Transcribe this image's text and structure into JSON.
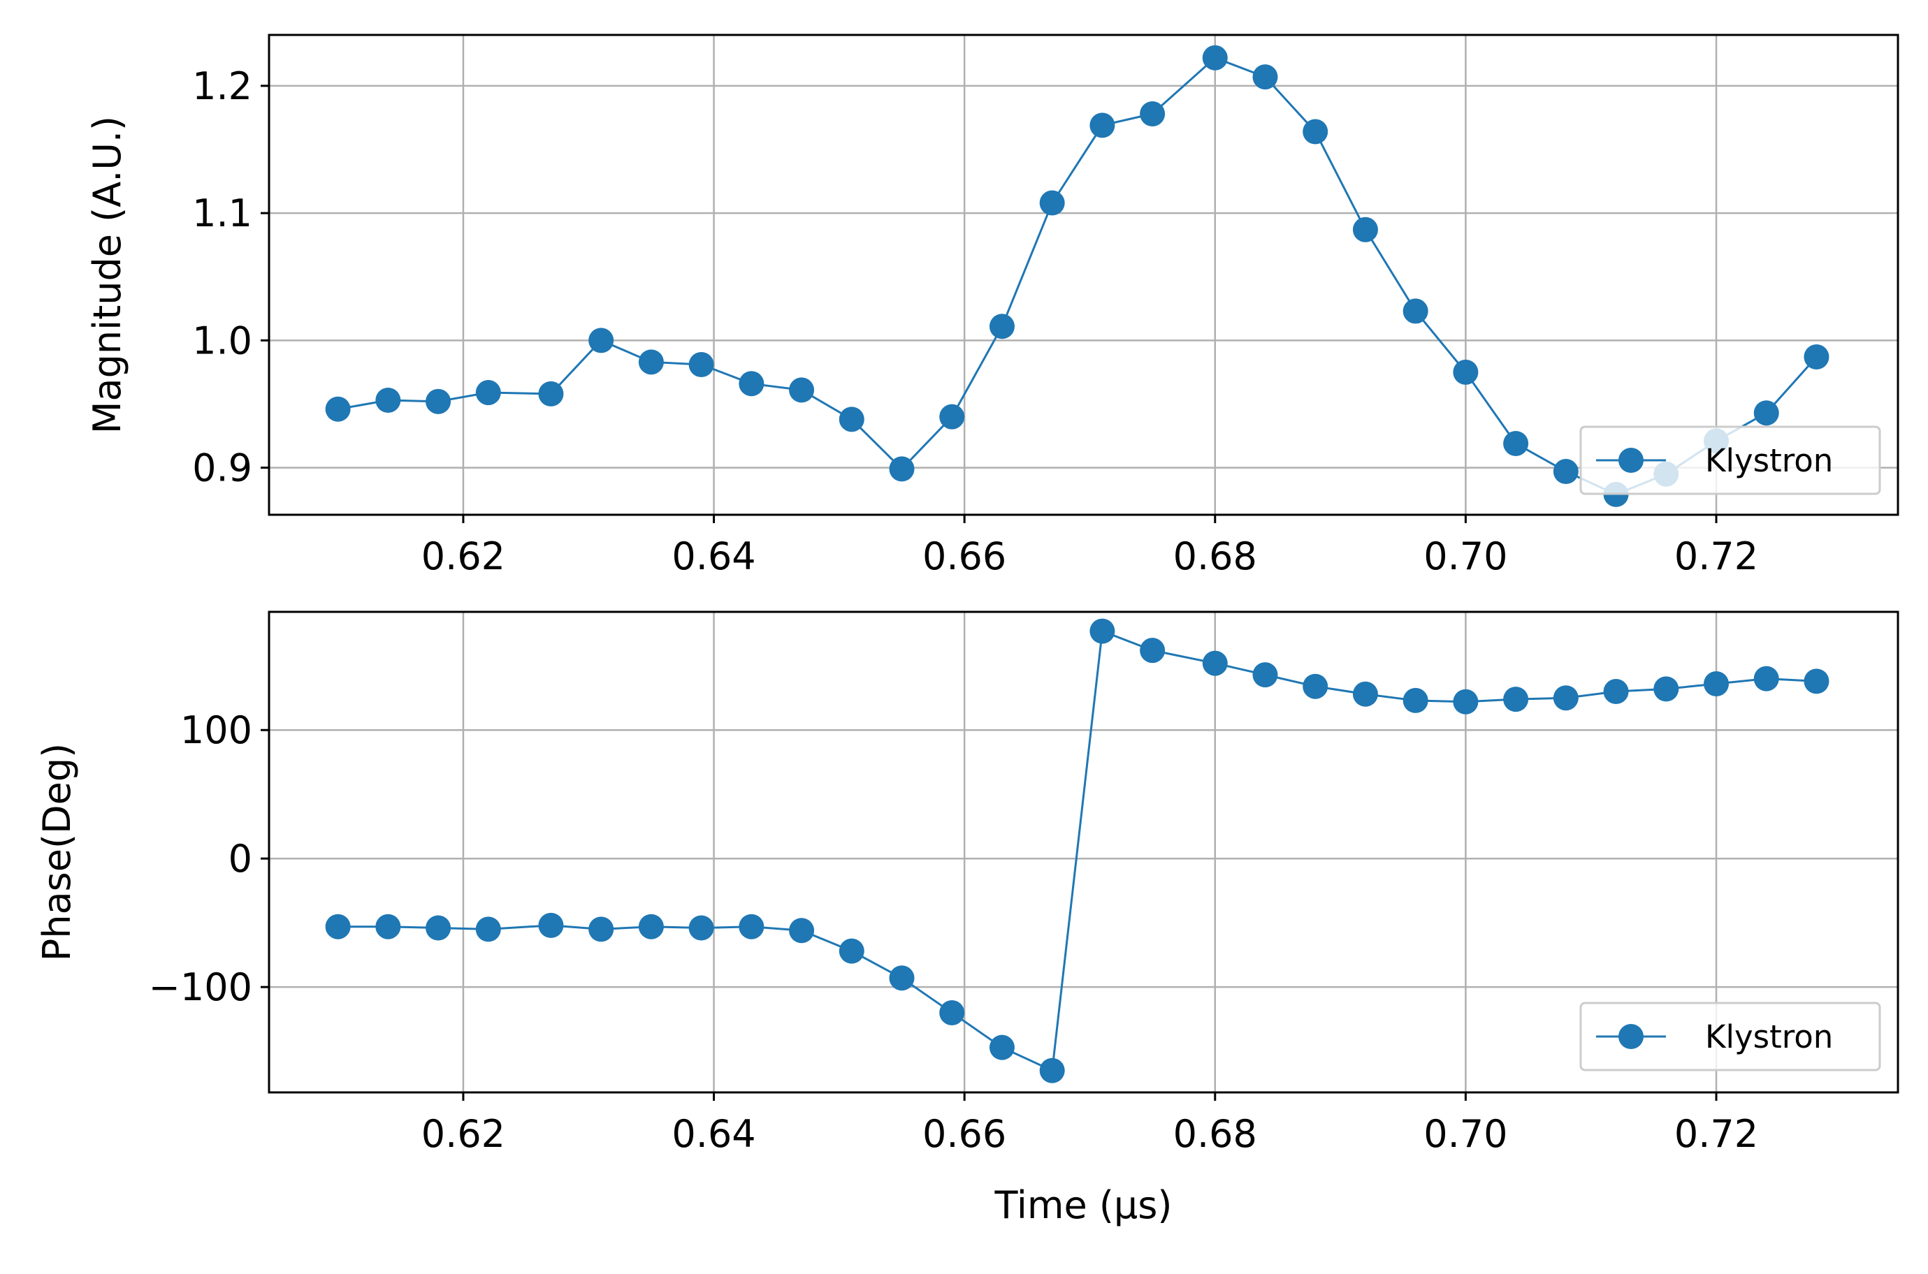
{
  "chart_data": [
    {
      "type": "line",
      "xlabel": "",
      "ylabel": "Magnitude (A.U.)",
      "xlim": [
        0.6045,
        0.7345
      ],
      "ylim": [
        0.863,
        1.24
      ],
      "xticks": [
        0.62,
        0.64,
        0.66,
        0.68,
        0.7,
        0.72
      ],
      "xtick_labels": [
        "0.62",
        "0.64",
        "0.66",
        "0.68",
        "0.70",
        "0.72"
      ],
      "yticks": [
        0.9,
        1.0,
        1.1,
        1.2
      ],
      "ytick_labels": [
        "0.9",
        "1.0",
        "1.1",
        "1.2"
      ],
      "grid": true,
      "legend_position": "lower-right",
      "series": [
        {
          "name": "Klystron",
          "color": "#1f77b4",
          "marker": "circle",
          "x": [
            0.61,
            0.614,
            0.618,
            0.622,
            0.627,
            0.631,
            0.635,
            0.639,
            0.643,
            0.647,
            0.651,
            0.655,
            0.659,
            0.663,
            0.667,
            0.671,
            0.675,
            0.68,
            0.684,
            0.688,
            0.692,
            0.696,
            0.7,
            0.704,
            0.708,
            0.712,
            0.716,
            0.72,
            0.724,
            0.728
          ],
          "y": [
            0.946,
            0.953,
            0.952,
            0.959,
            0.958,
            1.0,
            0.983,
            0.981,
            0.966,
            0.961,
            0.938,
            0.899,
            0.94,
            1.011,
            1.108,
            1.169,
            1.178,
            1.222,
            1.207,
            1.164,
            1.087,
            1.023,
            0.975,
            0.919,
            0.897,
            0.879,
            0.895,
            0.921,
            0.943,
            0.987
          ]
        }
      ]
    },
    {
      "type": "line",
      "xlabel": "Time (μs)",
      "ylabel": "Phase(Deg)",
      "xlim": [
        0.6045,
        0.7345
      ],
      "ylim": [
        -182,
        192
      ],
      "xticks": [
        0.62,
        0.64,
        0.66,
        0.68,
        0.7,
        0.72
      ],
      "xtick_labels": [
        "0.62",
        "0.64",
        "0.66",
        "0.68",
        "0.70",
        "0.72"
      ],
      "yticks": [
        -100,
        0,
        100
      ],
      "ytick_labels": [
        "−100",
        "0",
        "100"
      ],
      "grid": true,
      "legend_position": "lower-right",
      "series": [
        {
          "name": "Klystron",
          "color": "#1f77b4",
          "marker": "circle",
          "x": [
            0.61,
            0.614,
            0.618,
            0.622,
            0.627,
            0.631,
            0.635,
            0.639,
            0.643,
            0.647,
            0.651,
            0.655,
            0.659,
            0.663,
            0.667,
            0.671,
            0.675,
            0.68,
            0.684,
            0.688,
            0.692,
            0.696,
            0.7,
            0.704,
            0.708,
            0.712,
            0.716,
            0.72,
            0.724,
            0.728
          ],
          "y": [
            -53,
            -53,
            -54,
            -55,
            -52,
            -55,
            -53,
            -54,
            -53,
            -56,
            -72,
            -93,
            -120,
            -147,
            -165,
            177,
            162,
            152,
            143,
            134,
            128,
            123,
            122,
            124,
            125,
            130,
            132,
            136,
            140,
            138
          ]
        }
      ]
    }
  ]
}
